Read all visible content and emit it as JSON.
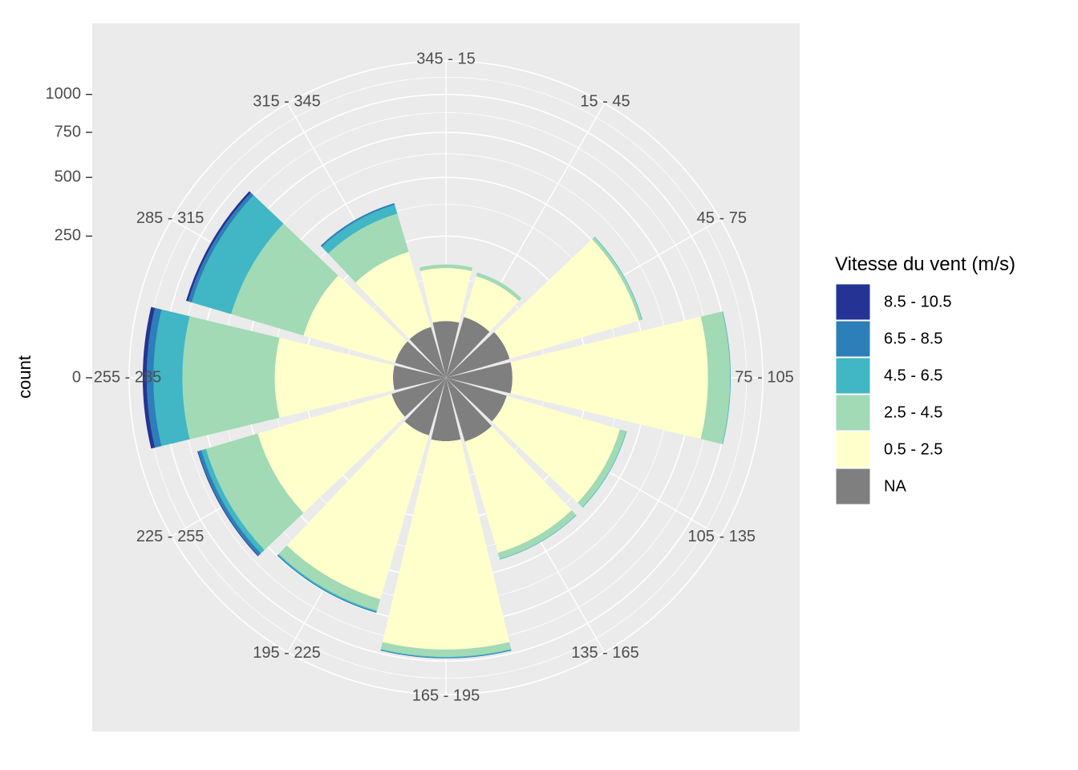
{
  "chart_data": {
    "type": "bar",
    "coord": "polar",
    "title": "",
    "xlabel": "",
    "ylabel": "count",
    "ylim": [
      0,
      1250
    ],
    "y_ticks": [
      0,
      250,
      500,
      750,
      1000
    ],
    "grid": true,
    "categories": [
      "345 - 15",
      "15 - 45",
      "45 - 75",
      "75 - 105",
      "105 - 135",
      "135 - 165",
      "165 - 195",
      "195 - 225",
      "225 - 255",
      "255 - 285",
      "285 - 315",
      "315 - 345"
    ],
    "series": [
      {
        "name": "NA",
        "color": "#7f7f7f",
        "values": [
          40,
          50,
          55,
          55,
          50,
          55,
          50,
          45,
          40,
          35,
          35,
          35
        ]
      },
      {
        "name": "0.5 - 2.5",
        "color": "#ffffcc",
        "values": [
          110,
          90,
          450,
          800,
          360,
          360,
          870,
          620,
          440,
          330,
          240,
          180
        ]
      },
      {
        "name": "2.5 - 4.5",
        "color": "#a1dab4",
        "values": [
          10,
          10,
          15,
          150,
          30,
          30,
          50,
          70,
          300,
          500,
          350,
          150
        ]
      },
      {
        "name": "4.5 - 6.5",
        "color": "#41b6c4",
        "values": [
          0,
          0,
          3,
          5,
          3,
          3,
          5,
          8,
          30,
          200,
          250,
          40
        ]
      },
      {
        "name": "6.5 - 8.5",
        "color": "#2c7fb8",
        "values": [
          0,
          0,
          0,
          0,
          0,
          0,
          5,
          6,
          22,
          50,
          25,
          8
        ]
      },
      {
        "name": "8.5 - 10.5",
        "color": "#253494",
        "values": [
          0,
          0,
          0,
          0,
          0,
          0,
          0,
          0,
          5,
          30,
          15,
          0
        ]
      }
    ],
    "legend": {
      "title": "Vitesse du vent (m/s)",
      "placement": "right",
      "items": [
        {
          "label": "8.5 - 10.5",
          "color": "#253494"
        },
        {
          "label": "6.5 - 8.5",
          "color": "#2c7fb8"
        },
        {
          "label": "4.5 - 6.5",
          "color": "#41b6c4"
        },
        {
          "label": "2.5 - 4.5",
          "color": "#a1dab4"
        },
        {
          "label": "0.5 - 2.5",
          "color": "#ffffcc"
        },
        {
          "label": "NA",
          "color": "#7f7f7f"
        }
      ]
    },
    "colors": {
      "panel": "#ebebeb",
      "grid": "#ffffff",
      "text": "#4d4d4d"
    }
  }
}
